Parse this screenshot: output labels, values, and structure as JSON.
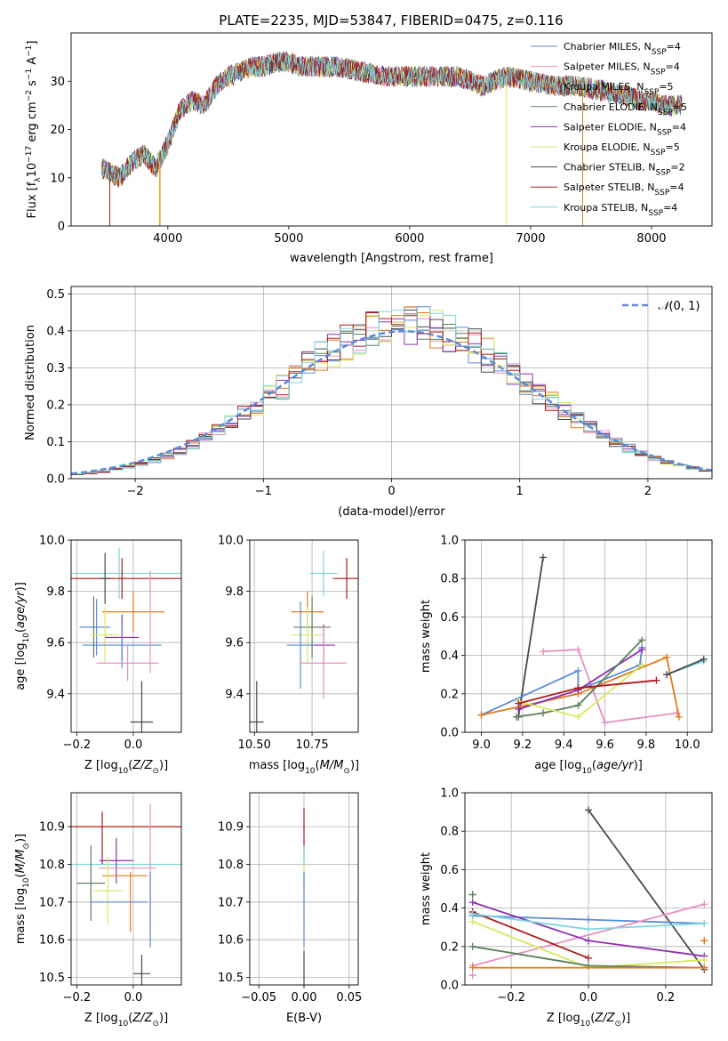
{
  "figure": {
    "title": "PLATE=2235, MJD=53847, FIBERID=0475, z=0.116"
  },
  "colors": {
    "Chabrier MILES": "#5b8bd8",
    "Salpeter MILES": "#e88fc0",
    "Kroupa MILES": "#e07a1a",
    "Chabrier ELODIE": "#5a7f5a",
    "Salpeter ELODIE": "#8f2fb0",
    "Kroupa ELODIE": "#d8e860",
    "Chabrier STELIB": "#4a4a4a",
    "Salpeter STELIB": "#b01818",
    "Kroupa STELIB": "#7fd6de"
  },
  "chart_data": [
    {
      "id": "spectrum",
      "type": "line",
      "title": "PLATE=2235, MJD=53847, FIBERID=0475, z=0.116",
      "xlabel": "wavelength [Angstrom, rest frame]",
      "ylabel": "Flux [f_λ10^-17 erg cm^-2 s^-1 A^-1]",
      "xlim": [
        3200,
        8500
      ],
      "ylim": [
        0,
        40
      ],
      "xticks": [
        4000,
        5000,
        6000,
        7000,
        8000
      ],
      "yticks": [
        0,
        10,
        20,
        30
      ],
      "grid": false,
      "legend_placement": "top-right",
      "legend": [
        {
          "name": "Chabrier MILES",
          "label": "Chabrier MILES, N",
          "sub": "SSP",
          "suffix": "=4"
        },
        {
          "name": "Salpeter MILES",
          "label": "Salpeter MILES, N",
          "sub": "SSP",
          "suffix": "=4"
        },
        {
          "name": "Kroupa MILES",
          "label": "Kroupa MILES, N",
          "sub": "SSP",
          "suffix": "=5"
        },
        {
          "name": "Chabrier ELODIE",
          "label": "Chabrier ELODIE, N",
          "sub": "SSP",
          "suffix": "=5"
        },
        {
          "name": "Salpeter ELODIE",
          "label": "Salpeter ELODIE, N",
          "sub": "SSP",
          "suffix": "=4"
        },
        {
          "name": "Kroupa ELODIE",
          "label": "Kroupa ELODIE, N",
          "sub": "SSP",
          "suffix": "=5"
        },
        {
          "name": "Chabrier STELIB",
          "label": "Chabrier STELIB, N",
          "sub": "SSP",
          "suffix": "=2"
        },
        {
          "name": "Salpeter STELIB",
          "label": "Salpeter STELIB, N",
          "sub": "SSP",
          "suffix": "=4"
        },
        {
          "name": "Kroupa STELIB",
          "label": "Kroupa STELIB, N",
          "sub": "SSP",
          "suffix": "=4"
        }
      ],
      "continuum": [
        [
          3450,
          12
        ],
        [
          3600,
          10
        ],
        [
          3700,
          13
        ],
        [
          3800,
          15
        ],
        [
          3900,
          12
        ],
        [
          4000,
          17
        ],
        [
          4100,
          24
        ],
        [
          4200,
          26
        ],
        [
          4300,
          25
        ],
        [
          4400,
          29
        ],
        [
          4500,
          31
        ],
        [
          4600,
          32
        ],
        [
          4700,
          33
        ],
        [
          4800,
          33
        ],
        [
          4900,
          34
        ],
        [
          5000,
          34
        ],
        [
          5100,
          33
        ],
        [
          5200,
          33
        ],
        [
          5300,
          33
        ],
        [
          5400,
          33
        ],
        [
          5600,
          32
        ],
        [
          5800,
          31
        ],
        [
          6000,
          31
        ],
        [
          6200,
          31
        ],
        [
          6400,
          31
        ],
        [
          6600,
          29
        ],
        [
          6800,
          31
        ],
        [
          7000,
          30
        ],
        [
          7200,
          29
        ],
        [
          7400,
          29
        ],
        [
          7600,
          28
        ],
        [
          7800,
          27
        ],
        [
          7900,
          26
        ],
        [
          8000,
          26
        ],
        [
          8100,
          25
        ],
        [
          8200,
          25
        ],
        [
          8250,
          25
        ]
      ],
      "dips": [
        [
          3520,
          3960
        ],
        [
          3910,
          3940
        ],
        [
          3920,
          3960
        ],
        [
          6790,
          6810
        ],
        [
          7420,
          7440
        ]
      ],
      "noise_amplitude": 2.2
    },
    {
      "id": "residuals",
      "type": "histogram",
      "xlabel": "(data-model)/error",
      "ylabel": "Normed distribution",
      "xlim": [
        -2.5,
        2.5
      ],
      "ylim": [
        0,
        0.52
      ],
      "xticks": [
        -2,
        -1,
        0,
        1,
        2
      ],
      "yticks": [
        0.0,
        0.1,
        0.2,
        0.3,
        0.4,
        0.5
      ],
      "grid": true,
      "legend_placement": "top-right",
      "legend": [
        {
          "label": "N(0,1)",
          "color": "#5b8bd8",
          "style": "dashed"
        }
      ],
      "bin_width": 0.1,
      "reference_curve": {
        "name": "N(0,1)",
        "mean": 0.1,
        "sigma": 1.0
      }
    },
    {
      "id": "age-vs-Z",
      "type": "errorbar",
      "xlabel": "Z [log10(Z/Z☉)]",
      "ylabel": "age [log10(age/yr)]",
      "xlim": [
        -0.22,
        0.17
      ],
      "ylim": [
        9.25,
        10.0
      ],
      "xticks": [
        -0.2,
        0.0
      ],
      "yticks": [
        9.4,
        9.6,
        9.8,
        10.0
      ],
      "grid": true,
      "points": [
        {
          "series": "Kroupa STELIB",
          "x": -0.05,
          "xerr": 0.22,
          "y": 9.87,
          "yerr": 0.1
        },
        {
          "series": "Salpeter STELIB",
          "x": -0.04,
          "xerr": 0.21,
          "y": 9.85,
          "yerr": 0.08
        },
        {
          "series": "Chabrier STELIB",
          "x": -0.1,
          "xerr": 0.02,
          "y": 9.85,
          "yerr": 0.1
        },
        {
          "series": "Kroupa MILES",
          "x": 0.0,
          "xerr": 0.11,
          "y": 9.72,
          "yerr": 0.08
        },
        {
          "series": "Chabrier ELODIE",
          "x": -0.14,
          "xerr": 0.05,
          "y": 9.66,
          "yerr": 0.12
        },
        {
          "series": "Chabrier MILES",
          "x": -0.13,
          "xerr": 0.05,
          "y": 9.66,
          "yerr": 0.11
        },
        {
          "series": "Kroupa ELODIE",
          "x": -0.1,
          "xerr": 0.05,
          "y": 9.63,
          "yerr": 0.11
        },
        {
          "series": "Salpeter ELODIE",
          "x": -0.04,
          "xerr": 0.06,
          "y": 9.62,
          "yerr": 0.09
        },
        {
          "series": "Chabrier MILES",
          "x": -0.04,
          "xerr": 0.14,
          "y": 9.59,
          "yerr": 0.09
        },
        {
          "series": "Salpeter MILES",
          "x": -0.02,
          "xerr": 0.11,
          "y": 9.52,
          "yerr": 0.07
        },
        {
          "series": "Salpeter MILES",
          "x": 0.06,
          "xerr": 0.0,
          "y": 9.68,
          "yerr": 0.2
        },
        {
          "series": "Chabrier STELIB",
          "x": 0.03,
          "xerr": 0.04,
          "y": 9.29,
          "yerr": 0.16
        }
      ]
    },
    {
      "id": "age-vs-mass",
      "type": "errorbar",
      "xlabel": "mass [log10(M/M☉)]",
      "ylabel": "",
      "xlim": [
        10.48,
        10.95
      ],
      "ylim": [
        9.25,
        10.0
      ],
      "xticks": [
        10.5,
        10.75
      ],
      "yticks": [
        9.4,
        9.6,
        9.8,
        10.0
      ],
      "grid": true,
      "points": [
        {
          "series": "Kroupa STELIB",
          "x": 10.8,
          "xerr": 0.06,
          "y": 9.87,
          "yerr": 0.09
        },
        {
          "series": "Salpeter STELIB",
          "x": 10.9,
          "xerr": 0.06,
          "y": 9.85,
          "yerr": 0.08
        },
        {
          "series": "Kroupa MILES",
          "x": 10.73,
          "xerr": 0.07,
          "y": 9.72,
          "yerr": 0.08
        },
        {
          "series": "Chabrier ELODIE",
          "x": 10.75,
          "xerr": 0.08,
          "y": 9.66,
          "yerr": 0.12
        },
        {
          "series": "Kroupa ELODIE",
          "x": 10.73,
          "xerr": 0.07,
          "y": 9.63,
          "yerr": 0.11
        },
        {
          "series": "Salpeter ELODIE",
          "x": 10.8,
          "xerr": 0.05,
          "y": 9.59,
          "yerr": 0.08
        },
        {
          "series": "Chabrier MILES",
          "x": 10.7,
          "xerr": 0.06,
          "y": 9.59,
          "yerr": 0.17
        },
        {
          "series": "Salpeter MILES",
          "x": 10.8,
          "xerr": 0.1,
          "y": 9.52,
          "yerr": 0.14
        },
        {
          "series": "Chabrier STELIB",
          "x": 10.51,
          "xerr": 0.03,
          "y": 9.29,
          "yerr": 0.16
        }
      ]
    },
    {
      "id": "mass-weight-vs-age",
      "type": "line",
      "xlabel": "age [log10(age/yr)]",
      "ylabel": "mass weight",
      "xlim": [
        8.92,
        10.12
      ],
      "ylim": [
        0,
        1.0
      ],
      "xticks": [
        9.0,
        9.2,
        9.4,
        9.6,
        9.8,
        10.0
      ],
      "yticks": [
        0.0,
        0.2,
        0.4,
        0.6,
        0.8,
        1.0
      ],
      "grid": true,
      "series": [
        {
          "name": "Chabrier STELIB",
          "x": [
            9.18,
            9.3
          ],
          "y": [
            0.08,
            0.91
          ]
        },
        {
          "name": "Salpeter MILES",
          "x": [
            9.3,
            9.47,
            9.6,
            9.95
          ],
          "y": [
            0.42,
            0.43,
            0.05,
            0.1
          ]
        },
        {
          "name": "Chabrier MILES",
          "x": [
            9.0,
            9.47,
            9.47,
            9.77,
            9.78
          ],
          "y": [
            0.09,
            0.32,
            0.22,
            0.35,
            0.44
          ]
        },
        {
          "name": "Kroupa MILES",
          "x": [
            9.0,
            9.47,
            9.9,
            9.96
          ],
          "y": [
            0.09,
            0.2,
            0.39,
            0.08
          ]
        },
        {
          "name": "Salpeter ELODIE",
          "x": [
            9.18,
            9.47,
            9.78
          ],
          "y": [
            0.12,
            0.22,
            0.43
          ]
        },
        {
          "name": "Chabrier ELODIE",
          "x": [
            9.17,
            9.3,
            9.47,
            9.78
          ],
          "y": [
            0.08,
            0.1,
            0.14,
            0.48
          ]
        },
        {
          "name": "Kroupa ELODIE",
          "x": [
            9.18,
            9.47,
            9.78
          ],
          "y": [
            0.16,
            0.08,
            0.35
          ]
        },
        {
          "name": "Salpeter STELIB",
          "x": [
            9.18,
            9.47,
            9.85
          ],
          "y": [
            0.15,
            0.23,
            0.27
          ]
        },
        {
          "name": "Kroupa STELIB",
          "x": [
            9.9,
            10.08
          ],
          "y": [
            0.3,
            0.37
          ]
        },
        {
          "name": "Chabrier STELIB",
          "x": [
            9.9,
            10.08
          ],
          "y": [
            0.3,
            0.38
          ]
        }
      ]
    },
    {
      "id": "mass-vs-Z",
      "type": "errorbar",
      "xlabel": "Z [log10(Z/Z☉)]",
      "ylabel": "mass [log10(M/M☉)]",
      "xlim": [
        -0.22,
        0.17
      ],
      "ylim": [
        10.48,
        10.99
      ],
      "xticks": [
        -0.2,
        0.0
      ],
      "yticks": [
        10.5,
        10.6,
        10.7,
        10.8,
        10.9
      ],
      "grid": true,
      "points": [
        {
          "series": "Salpeter STELIB",
          "x": -0.04,
          "xerr": 0.21,
          "y": 10.9,
          "yerr": 0.0
        },
        {
          "series": "Salpeter STELIB",
          "x": -0.11,
          "xerr": 0.0,
          "y": 10.87,
          "yerr": 0.07
        },
        {
          "series": "Kroupa STELIB",
          "x": -0.05,
          "xerr": 0.22,
          "y": 10.8,
          "yerr": 0.0
        },
        {
          "series": "Salpeter ELODIE",
          "x": -0.06,
          "xerr": 0.06,
          "y": 10.81,
          "yerr": 0.06
        },
        {
          "series": "Salpeter MILES",
          "x": -0.02,
          "xerr": 0.1,
          "y": 10.79,
          "yerr": 0.0
        },
        {
          "series": "Kroupa MILES",
          "x": -0.03,
          "xerr": 0.08,
          "y": 10.77,
          "yerr": 0.0
        },
        {
          "series": "Chabrier ELODIE",
          "x": -0.15,
          "xerr": 0.05,
          "y": 10.75,
          "yerr": 0.1
        },
        {
          "series": "Kroupa ELODIE",
          "x": -0.09,
          "xerr": 0.05,
          "y": 10.73,
          "yerr": 0.09
        },
        {
          "series": "Chabrier MILES",
          "x": -0.05,
          "xerr": 0.1,
          "y": 10.7,
          "yerr": 0.0
        },
        {
          "series": "Kroupa MILES",
          "x": -0.01,
          "xerr": 0.0,
          "y": 10.7,
          "yerr": 0.08
        },
        {
          "series": "Salpeter MILES",
          "x": 0.06,
          "xerr": 0.0,
          "y": 10.78,
          "yerr": 0.18
        },
        {
          "series": "Chabrier MILES",
          "x": 0.06,
          "xerr": 0.0,
          "y": 10.68,
          "yerr": 0.1
        },
        {
          "series": "Chabrier STELIB",
          "x": 0.03,
          "xerr": 0.03,
          "y": 10.51,
          "yerr": 0.05
        }
      ]
    },
    {
      "id": "mass-vs-EBV",
      "type": "errorbar",
      "xlabel": "E(B-V)",
      "ylabel": "",
      "xlim": [
        -0.06,
        0.06
      ],
      "ylim": [
        10.48,
        10.99
      ],
      "xticks": [
        -0.05,
        0.0,
        0.05
      ],
      "yticks": [
        10.5,
        10.6,
        10.7,
        10.8,
        10.9
      ],
      "grid": true,
      "points": [
        {
          "series": "Salpeter STELIB",
          "x": 0.0,
          "xerr": 0.0,
          "y": 10.88,
          "yerr": 0.07
        },
        {
          "series": "Kroupa STELIB",
          "x": 0.0,
          "xerr": 0.0,
          "y": 10.8,
          "yerr": 0.05
        },
        {
          "series": "Kroupa ELODIE",
          "x": 0.0,
          "xerr": 0.0,
          "y": 10.72,
          "yerr": 0.08
        },
        {
          "series": "Chabrier MILES",
          "x": 0.0,
          "xerr": 0.0,
          "y": 10.68,
          "yerr": 0.1
        },
        {
          "series": "Chabrier STELIB",
          "x": 0.0,
          "xerr": 0.0,
          "y": 10.52,
          "yerr": 0.05
        }
      ]
    },
    {
      "id": "mass-weight-vs-Z",
      "type": "line",
      "xlabel": "Z [log10(Z/Z☉)]",
      "ylabel": "mass weight",
      "xlim": [
        -0.32,
        0.32
      ],
      "ylim": [
        0,
        1.0
      ],
      "xticks": [
        -0.2,
        0.0,
        0.2
      ],
      "yticks": [
        0.0,
        0.2,
        0.4,
        0.6,
        0.8,
        1.0
      ],
      "grid": true,
      "series": [
        {
          "name": "Chabrier STELIB",
          "x": [
            0.0,
            0.3
          ],
          "y": [
            0.91,
            0.08
          ]
        },
        {
          "name": "Chabrier MILES",
          "x": [
            -0.3,
            0.0,
            0.3
          ],
          "y": [
            0.36,
            0.34,
            0.32
          ]
        },
        {
          "name": "Salpeter MILES",
          "x": [
            -0.3,
            0.3
          ],
          "y": [
            0.1,
            0.42
          ]
        },
        {
          "name": "Salpeter ELODIE",
          "x": [
            -0.3,
            0.0,
            0.3
          ],
          "y": [
            0.43,
            0.23,
            0.15
          ]
        },
        {
          "name": "Kroupa ELODIE",
          "x": [
            -0.3,
            0.0,
            0.3
          ],
          "y": [
            0.33,
            0.09,
            0.13
          ]
        },
        {
          "name": "Chabrier ELODIE",
          "x": [
            -0.3,
            0.0,
            0.3
          ],
          "y": [
            0.2,
            0.1,
            0.09
          ]
        },
        {
          "name": "Salpeter STELIB",
          "x": [
            -0.3,
            0.0
          ],
          "y": [
            0.38,
            0.14
          ]
        },
        {
          "name": "Kroupa MILES",
          "x": [
            -0.3,
            0.3
          ],
          "y": [
            0.09,
            0.09
          ]
        },
        {
          "name": "Kroupa STELIB",
          "x": [
            -0.3,
            0.0,
            0.3
          ],
          "y": [
            0.37,
            0.29,
            0.32
          ]
        },
        {
          "name": "Chabrier ELODIE",
          "x": [
            -0.3,
            -0.3
          ],
          "y": [
            0.47,
            0.47
          ]
        },
        {
          "name": "Salpeter MILES",
          "x": [
            -0.3,
            -0.3
          ],
          "y": [
            0.05,
            0.05
          ]
        },
        {
          "name": "Kroupa MILES",
          "x": [
            0.3,
            0.3
          ],
          "y": [
            0.23,
            0.23
          ]
        }
      ]
    }
  ]
}
